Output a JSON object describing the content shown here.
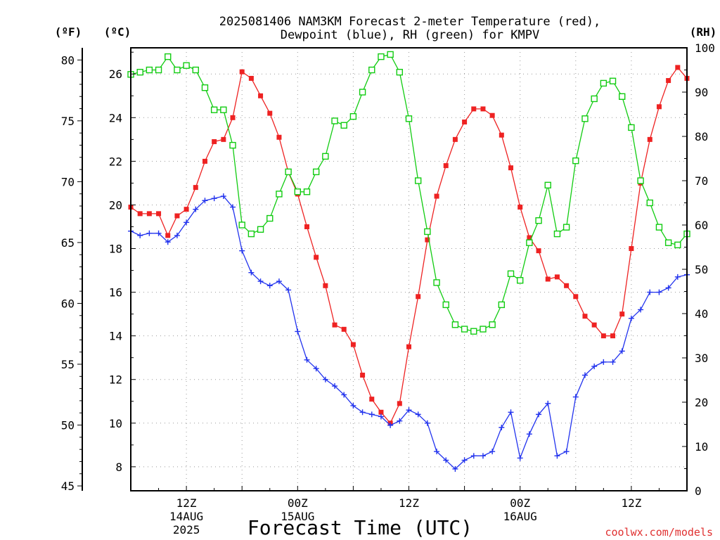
{
  "chart_data": {
    "type": "line",
    "title_line1": "2025081406 NAM3KM Forecast 2-meter Temperature (red),",
    "title_line2": "Dewpoint (blue), RH (green) for KMPV",
    "xlabel": "Forecast Time (UTC)",
    "ylabel_f": "(ºF)",
    "ylabel_c": "(ºC)",
    "ylabel_rh": "(RH)",
    "watermark": "coolwx.com/models",
    "hour_range": [
      6,
      66
    ],
    "ylim_c": [
      6.9,
      27.2
    ],
    "ylim_rh": [
      0,
      100
    ],
    "ylim_f": [
      44.6,
      81.0
    ],
    "grid": true,
    "x_ticks": [
      {
        "hour": 12,
        "label": "12Z",
        "date": "14AUG",
        "year": "2025"
      },
      {
        "hour": 24,
        "label": "00Z",
        "date": "15AUG",
        "year": ""
      },
      {
        "hour": 36,
        "label": "12Z",
        "date": "",
        "year": ""
      },
      {
        "hour": 48,
        "label": "00Z",
        "date": "16AUG",
        "year": ""
      },
      {
        "hour": 60,
        "label": "12Z",
        "date": "",
        "year": ""
      }
    ],
    "y_ticks_c": [
      8,
      10,
      12,
      14,
      16,
      18,
      20,
      22,
      24,
      26
    ],
    "y_ticks_f": [
      45,
      50,
      55,
      60,
      65,
      70,
      75,
      80
    ],
    "y_ticks_rh": [
      0,
      10,
      20,
      30,
      40,
      50,
      60,
      70,
      80,
      90,
      100
    ],
    "hours": [
      6,
      7,
      8,
      9,
      10,
      11,
      12,
      13,
      14,
      15,
      16,
      17,
      18,
      19,
      20,
      21,
      22,
      23,
      24,
      25,
      26,
      27,
      28,
      29,
      30,
      31,
      32,
      33,
      34,
      35,
      36,
      37,
      38,
      39,
      40,
      41,
      42,
      43,
      44,
      45,
      46,
      47,
      48,
      49,
      50,
      51,
      52,
      53,
      54,
      55,
      56,
      57,
      58,
      59,
      60,
      61,
      62,
      63,
      64,
      65,
      66
    ],
    "series": [
      {
        "name": "Temperature",
        "unit": "°C",
        "color": "#ee2222",
        "marker": "filled-square",
        "values": [
          19.9,
          19.6,
          19.6,
          19.6,
          18.6,
          19.5,
          19.8,
          20.8,
          22.0,
          22.9,
          23.0,
          24.0,
          26.1,
          25.8,
          25.0,
          24.2,
          23.1,
          21.5,
          20.5,
          19.0,
          17.6,
          16.3,
          14.5,
          14.3,
          13.6,
          12.2,
          11.1,
          10.5,
          10.0,
          10.9,
          13.5,
          15.8,
          18.4,
          20.4,
          21.8,
          23.0,
          23.8,
          24.4,
          24.4,
          24.1,
          23.2,
          21.7,
          19.9,
          18.5,
          17.9,
          16.6,
          16.7,
          16.3,
          15.8,
          14.9,
          14.5,
          14.0,
          14.0,
          15.0,
          18.0,
          21.0,
          23.0,
          24.5,
          25.7,
          26.3,
          25.8
        ]
      },
      {
        "name": "Dewpoint",
        "unit": "°C",
        "color": "#2233ee",
        "marker": "plus",
        "values": [
          18.8,
          18.6,
          18.7,
          18.7,
          18.3,
          18.6,
          19.2,
          19.8,
          20.2,
          20.3,
          20.4,
          19.9,
          17.9,
          16.9,
          16.5,
          16.3,
          16.5,
          16.1,
          14.2,
          12.9,
          12.5,
          12.0,
          11.7,
          11.3,
          10.8,
          10.5,
          10.4,
          10.3,
          9.9,
          10.1,
          10.6,
          10.4,
          10.0,
          8.7,
          8.3,
          7.9,
          8.3,
          8.5,
          8.5,
          8.7,
          9.8,
          10.5,
          8.4,
          9.5,
          10.4,
          10.9,
          8.5,
          8.7,
          11.2,
          12.2,
          12.6,
          12.8,
          12.8,
          13.3,
          14.8,
          15.2,
          16.0,
          16.0,
          16.2,
          16.7,
          16.8
        ]
      },
      {
        "name": "RH",
        "unit": "%",
        "color": "#11cc11",
        "marker": "open-square",
        "values": [
          94,
          94.5,
          95,
          95,
          98,
          95,
          96,
          95,
          91,
          86,
          86,
          78,
          60,
          58,
          59,
          61.5,
          67,
          72,
          67.5,
          67.5,
          72,
          75.5,
          83.5,
          82.5,
          84.5,
          90,
          95,
          98,
          98.5,
          94.5,
          84,
          70,
          58.5,
          47,
          42,
          37.5,
          36.5,
          36,
          36.5,
          37.5,
          42,
          49,
          47.5,
          56,
          61,
          69,
          58,
          59.5,
          74.5,
          84,
          88.5,
          92,
          92.5,
          89,
          82,
          70,
          65,
          59.5,
          56,
          55.5,
          58
        ]
      }
    ]
  }
}
